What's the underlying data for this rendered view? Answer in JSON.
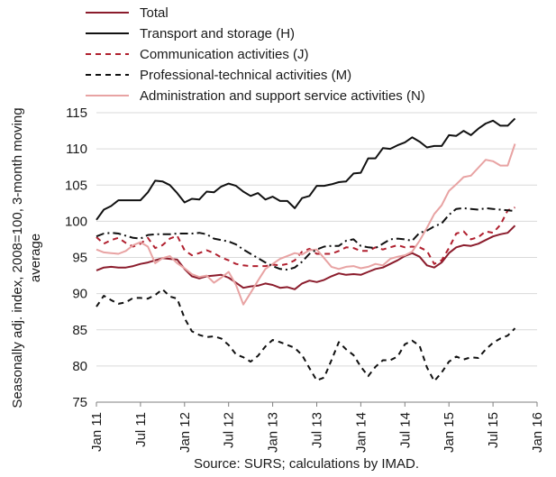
{
  "chart_data": {
    "type": "line",
    "ylabel_lines": [
      "Seasonally adj. index, 2008=100, 3-month moving",
      "average"
    ],
    "xlabel": "",
    "source": "Source: SURS; calculations by IMAD.",
    "ylim": [
      75,
      115
    ],
    "yticks": [
      75,
      80,
      85,
      90,
      95,
      100,
      105,
      110,
      115
    ],
    "xlim": [
      "2011-01",
      "2016-01"
    ],
    "xtick_labels": [
      "Jan 11",
      "Jul 11",
      "Jan 12",
      "Jul 12",
      "Jan 13",
      "Jul 13",
      "Jan 14",
      "Jul 14",
      "Jan 15",
      "Jul 15",
      "Jan 16"
    ],
    "x_start": "2011-01",
    "grid": "horizontal",
    "legend_position": "top-left",
    "series": [
      {
        "name": "Total",
        "color": "#8b1c2c",
        "dash": "solid",
        "values": [
          93.2,
          93.6,
          93.7,
          93.6,
          93.6,
          93.8,
          94.1,
          94.3,
          94.6,
          94.9,
          94.8,
          94.7,
          93.4,
          92.4,
          92.1,
          92.4,
          92.5,
          92.6,
          92.2,
          91.5,
          90.8,
          91.0,
          91.1,
          91.4,
          91.2,
          90.8,
          90.9,
          90.6,
          91.4,
          91.8,
          91.6,
          91.9,
          92.4,
          92.8,
          92.6,
          92.7,
          92.6,
          93.0,
          93.4,
          93.6,
          94.1,
          94.6,
          95.2,
          95.6,
          95.1,
          93.9,
          93.6,
          94.3,
          95.6,
          96.4,
          96.7,
          96.6,
          96.9,
          97.4,
          97.9,
          98.2,
          98.4,
          99.4
        ]
      },
      {
        "name": "Transport and storage (H)",
        "color": "#111111",
        "dash": "solid",
        "values": [
          100.2,
          101.6,
          102.1,
          102.9,
          102.9,
          102.9,
          102.9,
          104.0,
          105.6,
          105.5,
          105.0,
          103.9,
          102.6,
          103.1,
          103.0,
          104.1,
          104.0,
          104.8,
          105.2,
          104.9,
          104.1,
          103.5,
          103.9,
          103.0,
          103.4,
          102.8,
          102.8,
          101.8,
          103.2,
          103.5,
          104.9,
          104.9,
          105.1,
          105.4,
          105.5,
          106.6,
          106.7,
          108.7,
          108.7,
          110.1,
          110.0,
          110.5,
          110.9,
          111.6,
          111.0,
          110.2,
          110.4,
          110.4,
          111.9,
          111.8,
          112.5,
          111.9,
          112.8,
          113.5,
          113.9,
          113.2,
          113.2,
          114.2
        ]
      },
      {
        "name": "Communication activities (J)",
        "color": "#b01f2e",
        "dash": "dashed",
        "values": [
          97.8,
          96.9,
          97.4,
          97.7,
          97.0,
          96.5,
          96.9,
          97.7,
          96.3,
          96.7,
          97.6,
          98.0,
          96.0,
          95.3,
          95.6,
          96.0,
          95.6,
          95.0,
          94.6,
          94.1,
          93.9,
          93.8,
          93.8,
          93.8,
          94.0,
          93.9,
          94.1,
          94.6,
          95.8,
          96.2,
          95.5,
          95.5,
          95.5,
          95.9,
          96.4,
          96.3,
          95.9,
          95.9,
          96.4,
          96.1,
          96.4,
          96.7,
          96.4,
          96.5,
          96.4,
          95.9,
          94.1,
          94.6,
          96.3,
          98.3,
          98.6,
          97.5,
          97.8,
          98.6,
          98.4,
          99.5,
          101.5,
          101.9
        ]
      },
      {
        "name": "Professional-technical activities (M)",
        "color": "#111111",
        "dash": "dashed",
        "values": [
          88.2,
          89.7,
          89.1,
          88.6,
          88.8,
          89.4,
          89.4,
          89.3,
          89.8,
          90.6,
          89.6,
          89.3,
          86.6,
          84.8,
          84.3,
          84.0,
          84.1,
          83.8,
          82.9,
          81.6,
          81.2,
          80.6,
          81.4,
          82.7,
          83.6,
          83.3,
          82.9,
          82.5,
          81.5,
          79.7,
          78.0,
          78.4,
          80.8,
          83.3,
          82.3,
          81.5,
          79.9,
          78.6,
          79.9,
          80.8,
          80.8,
          81.3,
          83.0,
          83.5,
          82.8,
          79.8,
          77.9,
          79.1,
          80.6,
          81.3,
          80.9,
          81.2,
          81.1,
          82.3,
          83.2,
          83.8,
          84.2,
          85.2
        ]
      },
      {
        "name": "Administration and support service activities (N)",
        "color": "#e8a3a3",
        "dash": "solid",
        "values": [
          96.1,
          95.7,
          95.6,
          95.5,
          95.9,
          96.7,
          97.1,
          96.5,
          94.2,
          94.9,
          95.2,
          94.2,
          93.5,
          92.7,
          92.3,
          92.5,
          91.5,
          92.2,
          93.0,
          91.2,
          88.5,
          90.1,
          91.8,
          93.4,
          94.1,
          94.8,
          95.2,
          95.6,
          95.4,
          96.0,
          96.1,
          94.9,
          93.7,
          93.4,
          93.7,
          93.8,
          93.5,
          93.7,
          94.1,
          93.9,
          94.8,
          95.1,
          95.3,
          95.8,
          97.3,
          99.1,
          101.0,
          102.2,
          104.2,
          105.1,
          106.1,
          106.3,
          107.4,
          108.5,
          108.3,
          107.7,
          107.7,
          110.7
        ]
      },
      {
        "name": "",
        "color": "#111111",
        "dash": "dashdot",
        "values": [
          97.9,
          98.3,
          98.4,
          98.3,
          98.0,
          97.7,
          97.6,
          98.1,
          98.2,
          98.2,
          98.2,
          98.3,
          98.3,
          98.3,
          98.4,
          98.2,
          97.6,
          97.4,
          97.2,
          96.8,
          96.1,
          95.5,
          94.9,
          94.3,
          93.8,
          93.4,
          93.3,
          93.6,
          94.4,
          95.5,
          96.1,
          96.5,
          96.6,
          96.6,
          97.3,
          97.5,
          96.6,
          96.4,
          96.3,
          96.9,
          97.5,
          97.6,
          97.5,
          97.3,
          98.4,
          98.7,
          99.3,
          99.7,
          100.9,
          101.7,
          101.8,
          101.7,
          101.6,
          101.8,
          101.7,
          101.6,
          101.5,
          101.4
        ]
      }
    ]
  }
}
